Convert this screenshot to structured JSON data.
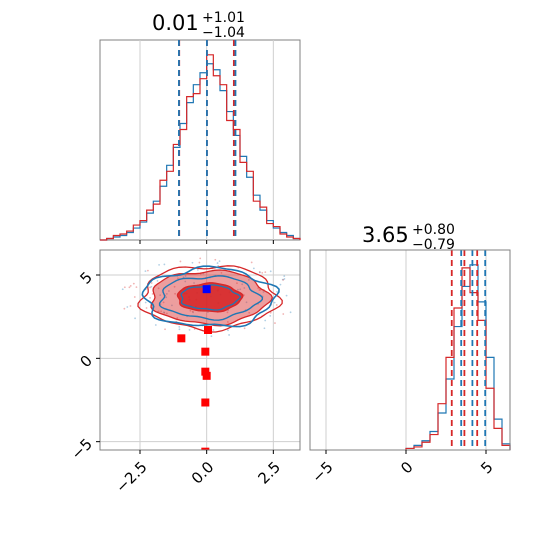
{
  "colors": {
    "series_a": "#1f77b4",
    "series_b": "#d62728",
    "marker_blue": "#0000ff",
    "marker_red": "#ff0000",
    "grid": "#cfcfcf",
    "axis": "#808080"
  },
  "chart_data": {
    "type": "corner",
    "panels": [
      {
        "id": "hist_x",
        "type": "histogram",
        "title": {
          "median": "0.01",
          "plus": "+1.01",
          "minus": "−1.04"
        },
        "xlim": [
          -4.0,
          3.5
        ],
        "grid_x": [
          -2.5,
          0.0,
          2.5
        ],
        "series": [
          {
            "color": "series_a",
            "bins": [
              -4.0,
              -3.75,
              -3.5,
              -3.25,
              -3.0,
              -2.75,
              -2.5,
              -2.25,
              -2.0,
              -1.75,
              -1.5,
              -1.25,
              -1.0,
              -0.75,
              -0.5,
              -0.25,
              0.0,
              0.25,
              0.5,
              0.75,
              1.0,
              1.25,
              1.5,
              1.75,
              2.0,
              2.25,
              2.5,
              2.75,
              3.0,
              3.25,
              3.5
            ],
            "counts": [
              0,
              1,
              2,
              3,
              5,
              8,
              12,
              18,
              26,
              36,
              50,
              62,
              78,
              92,
              104,
              112,
              118,
              114,
              100,
              86,
              70,
              56,
              42,
              30,
              20,
              13,
              8,
              5,
              3,
              1
            ]
          },
          {
            "color": "series_b",
            "bins": [
              -4.0,
              -3.75,
              -3.5,
              -3.25,
              -3.0,
              -2.75,
              -2.5,
              -2.25,
              -2.0,
              -1.75,
              -1.5,
              -1.25,
              -1.0,
              -0.75,
              -0.5,
              -0.25,
              0.0,
              0.25,
              0.5,
              0.75,
              1.0,
              1.25,
              1.5,
              1.75,
              2.0,
              2.25,
              2.5,
              2.75,
              3.0,
              3.25,
              3.5
            ],
            "counts": [
              0,
              1,
              3,
              4,
              6,
              10,
              13,
              20,
              24,
              40,
              46,
              64,
              74,
              96,
              98,
              108,
              124,
              110,
              104,
              80,
              74,
              52,
              46,
              26,
              22,
              11,
              9,
              4,
              2,
              1
            ]
          }
        ],
        "vlines": [
          {
            "x": -1.03,
            "color": "series_b"
          },
          {
            "x": 0.01,
            "color": "series_b"
          },
          {
            "x": 1.02,
            "color": "series_b"
          },
          {
            "x": -1.04,
            "color": "series_a"
          },
          {
            "x": 0.01,
            "color": "series_a"
          },
          {
            "x": 1.08,
            "color": "series_a"
          }
        ]
      },
      {
        "id": "scatter_xy",
        "type": "contour",
        "xlim": [
          -4.0,
          3.5
        ],
        "ylim": [
          -5.5,
          6.5
        ],
        "grid_x": [
          -2.5,
          0.0,
          2.5
        ],
        "grid_y": [
          -5,
          0,
          5
        ],
        "x_ticks": [
          -2.5,
          0.0,
          2.5
        ],
        "x_tick_labels": [
          "−2.5",
          "0.0",
          "2.5"
        ],
        "y_ticks": [
          -5,
          0,
          5
        ],
        "y_tick_labels": [
          "−5",
          "0",
          "5"
        ],
        "contour_center": [
          0.1,
          3.65
        ],
        "contour_levels": [
          {
            "rx": 1.2,
            "ry": 0.85,
            "fill": "series_b",
            "opacity": 0.9
          },
          {
            "rx": 2.2,
            "ry": 1.6,
            "fill": "series_b",
            "opacity": 0.45
          },
          {
            "rx": 2.55,
            "ry": 1.9,
            "fill": null,
            "opacity": 1
          }
        ],
        "blue_outline": {
          "rx": 2.45,
          "ry": 1.75
        },
        "markers_red": [
          [
            -0.95,
            1.2
          ],
          [
            0.05,
            1.7
          ],
          [
            -0.05,
            0.4
          ],
          [
            -0.05,
            -0.8
          ],
          [
            0.0,
            -1.05
          ],
          [
            -0.05,
            -2.65
          ],
          [
            -0.05,
            -5.6
          ]
        ],
        "markers_blue": [
          [
            0.0,
            4.15
          ]
        ]
      },
      {
        "id": "hist_y",
        "type": "histogram",
        "title": {
          "median": "3.65",
          "plus": "+0.80",
          "minus": "−0.79"
        },
        "xlim": [
          -6.0,
          6.5
        ],
        "grid_x": [
          -5,
          0,
          5
        ],
        "x_ticks": [
          -5,
          0,
          5
        ],
        "x_tick_labels": [
          "−5",
          "0",
          "5"
        ],
        "series": [
          {
            "color": "series_a",
            "bins": [
              0.0,
              0.5,
              1.0,
              1.5,
              2.0,
              2.5,
              3.0,
              3.5,
              4.0,
              4.5,
              5.0,
              5.5,
              6.0,
              6.5
            ],
            "counts": [
              1,
              3,
              6,
              12,
              24,
              46,
              80,
              106,
              120,
              96,
              60,
              20,
              4
            ]
          },
          {
            "color": "series_b",
            "bins": [
              0.0,
              0.5,
              1.0,
              1.5,
              2.0,
              2.5,
              3.0,
              3.5,
              4.0,
              4.5,
              5.0,
              5.5,
              6.0,
              6.5
            ],
            "counts": [
              1,
              2,
              5,
              10,
              30,
              60,
              92,
              118,
              102,
              84,
              40,
              14,
              3
            ]
          }
        ],
        "vlines": [
          {
            "x": 2.86,
            "color": "series_b"
          },
          {
            "x": 3.65,
            "color": "series_b"
          },
          {
            "x": 4.45,
            "color": "series_b"
          },
          {
            "x": 3.45,
            "color": "series_a"
          },
          {
            "x": 4.15,
            "color": "series_a"
          },
          {
            "x": 4.95,
            "color": "series_a"
          }
        ]
      }
    ]
  }
}
